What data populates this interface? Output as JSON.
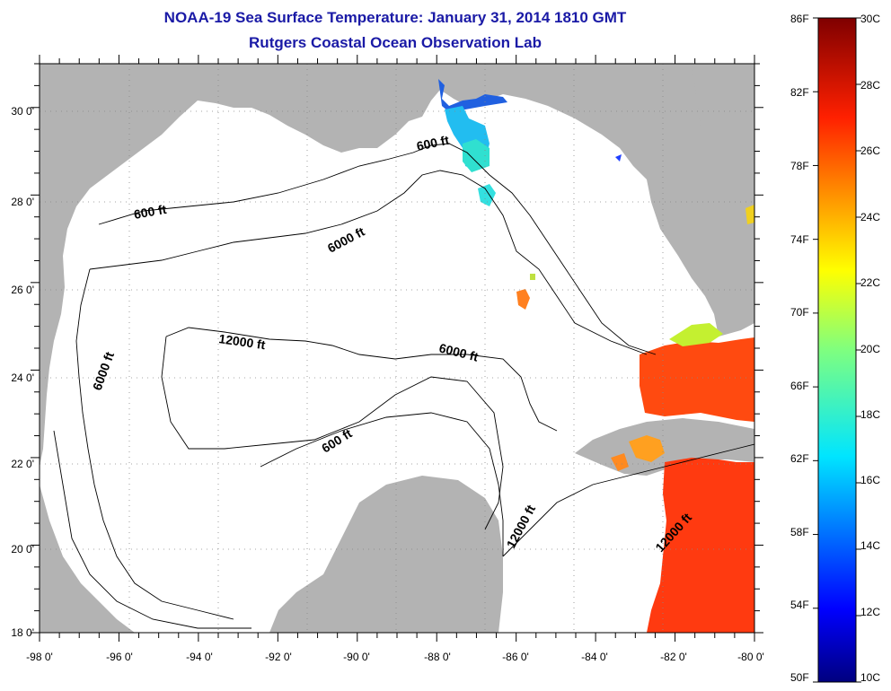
{
  "title": {
    "line1": "NOAA-19 Sea Surface Temperature:  January 31, 2014 1810 GMT",
    "line2": "Rutgers Coastal Ocean Observation Lab"
  },
  "map": {
    "lon_labels": [
      "-98 0'",
      "-96 0'",
      "-94 0'",
      "-92 0'",
      "-90 0'",
      "-88 0'",
      "-86 0'",
      "-84 0'",
      "-82 0'",
      "-80 0'"
    ],
    "lat_labels": [
      "30 0'",
      "28 0'",
      "26 0'",
      "24 0'",
      "22 0'",
      "20 0'",
      "18 0'"
    ],
    "contour_labels": [
      "600 ft",
      "600 ft",
      "6000 ft",
      "6000 ft",
      "12000 ft",
      "6000 ft",
      "600 ft",
      "12000 ft",
      "12000 ft"
    ],
    "colors": {
      "land": "#b3b3b3",
      "water": "#ffffff",
      "grid": "#888888"
    }
  },
  "colorbar": {
    "f_labels": [
      "86F",
      "82F",
      "78F",
      "74F",
      "70F",
      "66F",
      "62F",
      "58F",
      "54F",
      "50F"
    ],
    "c_labels": [
      "30C",
      "28C",
      "26C",
      "24C",
      "22C",
      "20C",
      "18C",
      "16C",
      "14C",
      "12C",
      "10C"
    ]
  }
}
